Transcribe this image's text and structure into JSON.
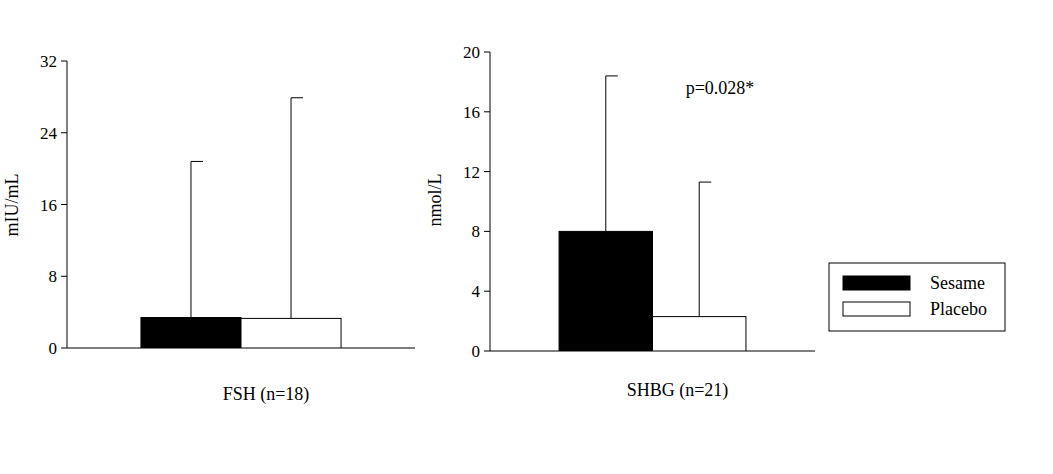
{
  "chart_data": [
    {
      "type": "bar",
      "y_label": "mIU/mL",
      "categories": [
        "FSH (n=18)"
      ],
      "series": [
        {
          "color": "#000000",
          "values": [
            3.4
          ],
          "errors": [
            17.4
          ]
        },
        {
          "color": "#ffffff",
          "values": [
            3.3
          ],
          "errors": [
            24.6
          ]
        }
      ],
      "ylim": [
        0,
        32
      ],
      "yticks": [
        0,
        8,
        16,
        24,
        32
      ]
    },
    {
      "type": "bar",
      "y_label": "nmol/L",
      "categories": [
        "SHBG (n=21)"
      ],
      "series": [
        {
          "name": "Sesame",
          "color": "#000000",
          "values": [
            8.0
          ],
          "errors": [
            10.4
          ]
        },
        {
          "name": "Placebo",
          "color": "#ffffff",
          "values": [
            2.3
          ],
          "errors": [
            9.0
          ]
        }
      ],
      "annotations": [
        "p=0.028*"
      ],
      "legend": "right",
      "ylim": [
        0,
        20
      ],
      "yticks": [
        0,
        4,
        8,
        12,
        16,
        20
      ]
    }
  ]
}
